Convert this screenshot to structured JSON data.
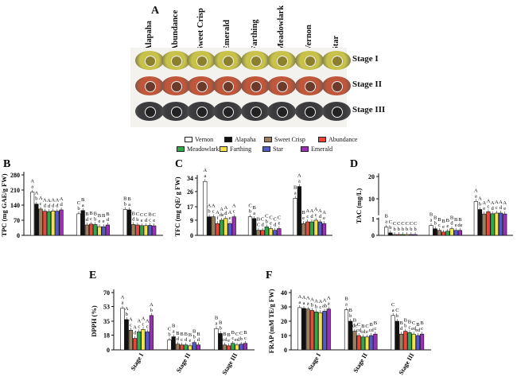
{
  "panel_a": {
    "letter": "A",
    "cultivars": [
      "Alapaha",
      "Abundance",
      "Sweet Crisp",
      "Emerald",
      "Farthing",
      "Meadowlark",
      "Vernon",
      "Star"
    ],
    "stages": [
      "Stage I",
      "Stage II",
      "Stage III"
    ],
    "colors": {
      "stage1": "#c8c24a",
      "stage2": "#c0563a",
      "stage3": "#3b3b3e"
    }
  },
  "legend": [
    {
      "name": "Vernon",
      "color": "#ffffff"
    },
    {
      "name": "Alapaha",
      "color": "#111111"
    },
    {
      "name": "Sweet Crisp",
      "color": "#9a8060"
    },
    {
      "name": "Abundance",
      "color": "#e8473a"
    },
    {
      "name": "Meadowlark",
      "color": "#2fa84a"
    },
    {
      "name": "Farthing",
      "color": "#f3e24a"
    },
    {
      "name": "Star",
      "color": "#5259c8"
    },
    {
      "name": "Emerald",
      "color": "#9b2fb5"
    }
  ],
  "chart_data": [
    {
      "panel": "B",
      "type": "bar",
      "ylabel": "TPC (mg GAE/g FW)",
      "yticks": [
        "0",
        "70",
        "140",
        "210",
        "280"
      ],
      "ylim": [
        0,
        280
      ],
      "categories": [
        "Stage I",
        "Stage II",
        "Stage III"
      ],
      "series": [
        {
          "name": "Vernon",
          "values": [
            200,
            100,
            120
          ]
        },
        {
          "name": "Alapaha",
          "values": [
            145,
            115,
            118
          ]
        },
        {
          "name": "Sweet Crisp",
          "values": [
            122,
            48,
            50
          ]
        },
        {
          "name": "Abundance",
          "values": [
            112,
            52,
            48
          ]
        },
        {
          "name": "Meadowlark",
          "values": [
            110,
            50,
            45
          ]
        },
        {
          "name": "Farthing",
          "values": [
            113,
            40,
            45
          ]
        },
        {
          "name": "Star",
          "values": [
            112,
            40,
            46
          ]
        },
        {
          "name": "Emerald",
          "values": [
            118,
            48,
            44
          ]
        }
      ],
      "labels": [
        [
          "A a",
          "A b",
          "A c",
          "A d",
          "A d",
          "A d",
          "A d",
          "A d"
        ],
        [
          "C b",
          "B a",
          "B d",
          "B c",
          "B b",
          "B e",
          "B e",
          "B d"
        ],
        [
          "B b",
          "B a",
          "B d",
          "C b",
          "C e",
          "C d",
          "B c",
          "C e"
        ]
      ]
    },
    {
      "panel": "C",
      "type": "bar",
      "ylabel": "TFC (mg QE/ g FW)",
      "yticks": [
        "0",
        "9",
        "17",
        "26",
        "34"
      ],
      "ylim": [
        0,
        34
      ],
      "categories": [
        "Stage I",
        "Stage II",
        "Stage III"
      ],
      "series": [
        {
          "name": "Vernon",
          "values": [
            32,
            11,
            22
          ]
        },
        {
          "name": "Alapaha",
          "values": [
            11,
            10,
            29
          ]
        },
        {
          "name": "Sweet Crisp",
          "values": [
            11,
            3,
            7
          ]
        },
        {
          "name": "Abundance",
          "values": [
            7,
            3,
            8
          ]
        },
        {
          "name": "Meadowlark",
          "values": [
            9,
            5,
            8
          ]
        },
        {
          "name": "Farthing",
          "values": [
            10,
            4,
            9
          ]
        },
        {
          "name": "Star",
          "values": [
            7,
            3,
            8
          ]
        },
        {
          "name": "Emerald",
          "values": [
            11,
            4,
            7
          ]
        }
      ],
      "labels": [
        [
          "A a",
          "A b",
          "A c",
          "A f",
          "A de",
          "A d",
          "A e",
          "A c"
        ],
        [
          "C b",
          "B a",
          "B C",
          "C d",
          "C b",
          "C e",
          "C d",
          "C e"
        ],
        [
          "B a",
          "A a",
          "B e",
          "A c",
          "A d",
          "A c",
          "A d",
          "A e"
        ]
      ]
    },
    {
      "panel": "D",
      "type": "bar",
      "ylabel": "TAC (mg/L)",
      "yticks": [
        "0",
        "1",
        "10",
        "20"
      ],
      "categories": [
        "Stage I",
        "Stage II",
        "Stage III"
      ],
      "series": [
        {
          "name": "Vernon",
          "values": [
            0.5,
            0.6,
            8.8
          ]
        },
        {
          "name": "Alapaha",
          "values": [
            0.15,
            0.4,
            5.2
          ]
        },
        {
          "name": "Sweet Crisp",
          "values": [
            0.05,
            0.3,
            3.2
          ]
        },
        {
          "name": "Abundance",
          "values": [
            0.05,
            0.2,
            4.2
          ]
        },
        {
          "name": "Meadowlark",
          "values": [
            0.05,
            0.25,
            3.3
          ]
        },
        {
          "name": "Farthing",
          "values": [
            0.05,
            0.4,
            3.6
          ]
        },
        {
          "name": "Star",
          "values": [
            0.05,
            0.3,
            3.6
          ]
        },
        {
          "name": "Emerald",
          "values": [
            0.05,
            0.3,
            3.2
          ]
        }
      ],
      "labels": [
        [
          "B a",
          "C b",
          "C b",
          "C b",
          "C b",
          "C b",
          "C b",
          "C b"
        ],
        [
          "B a",
          "B b",
          "B c",
          "B e",
          "B e",
          "B d",
          "B e",
          "B de"
        ],
        [
          "A a",
          "A b",
          "A e",
          "A c",
          "A d",
          "A c",
          "A d",
          "A e"
        ]
      ]
    },
    {
      "panel": "E",
      "type": "bar",
      "ylabel": "DPPH (%)",
      "yticks": [
        "0",
        "18",
        "35",
        "53",
        "70"
      ],
      "ylim": [
        0,
        70
      ],
      "categories": [
        "Stage I",
        "Stage II",
        "Stage III"
      ],
      "series": [
        {
          "name": "Vernon",
          "values": [
            51,
            12,
            26
          ]
        },
        {
          "name": "Alapaha",
          "values": [
            37,
            16,
            20
          ]
        },
        {
          "name": "Sweet Crisp",
          "values": [
            24,
            7,
            6
          ]
        },
        {
          "name": "Abundance",
          "values": [
            14,
            6,
            5
          ]
        },
        {
          "name": "Meadowlark",
          "values": [
            22,
            6,
            8
          ]
        },
        {
          "name": "Farthing",
          "values": [
            25,
            5,
            6
          ]
        },
        {
          "name": "Star",
          "values": [
            22,
            9,
            7
          ]
        },
        {
          "name": "Emerald",
          "values": [
            42,
            6,
            8
          ]
        }
      ],
      "labels": [
        [
          "A a",
          "A b",
          "A c",
          "A d",
          "A c",
          "A c",
          "A c",
          "A b"
        ],
        [
          "C b",
          "B a",
          "B d",
          "B c",
          "B d",
          "B e",
          "B b",
          "B d"
        ],
        [
          "B a",
          "B b",
          "B cd",
          "B e",
          "B c",
          "C ed",
          "C b",
          "B c"
        ]
      ]
    },
    {
      "panel": "F",
      "type": "bar",
      "ylabel": "FRAP (mM TE/g FW)",
      "yticks": [
        "0",
        "10",
        "20",
        "30",
        "40"
      ],
      "ylim": [
        0,
        40
      ],
      "categories": [
        "Stage I",
        "Stage II",
        "Stage III"
      ],
      "series": [
        {
          "name": "Vernon",
          "values": [
            29.5,
            28,
            24
          ]
        },
        {
          "name": "Alapaha",
          "values": [
            29,
            20,
            20
          ]
        },
        {
          "name": "Sweet Crisp",
          "values": [
            28.5,
            13,
            11
          ]
        },
        {
          "name": "Abundance",
          "values": [
            27.5,
            10,
            13
          ]
        },
        {
          "name": "Meadowlark",
          "values": [
            26.5,
            9,
            12
          ]
        },
        {
          "name": "Farthing",
          "values": [
            26,
            9,
            11
          ]
        },
        {
          "name": "Star",
          "values": [
            27,
            10,
            10
          ]
        },
        {
          "name": "Emerald",
          "values": [
            28.5,
            11,
            11
          ]
        }
      ],
      "labels": [
        [
          "A a",
          "A a",
          "A a",
          "A b",
          "A b",
          "A c",
          "A ab",
          "A a"
        ],
        [
          "B a",
          "B b",
          "B de",
          "C cd",
          "B cd",
          "C e",
          "B cd",
          "B c"
        ],
        [
          "C a",
          "C b",
          "B d",
          "B b",
          "B c",
          "C ed",
          "B ed",
          "B c"
        ]
      ]
    }
  ]
}
